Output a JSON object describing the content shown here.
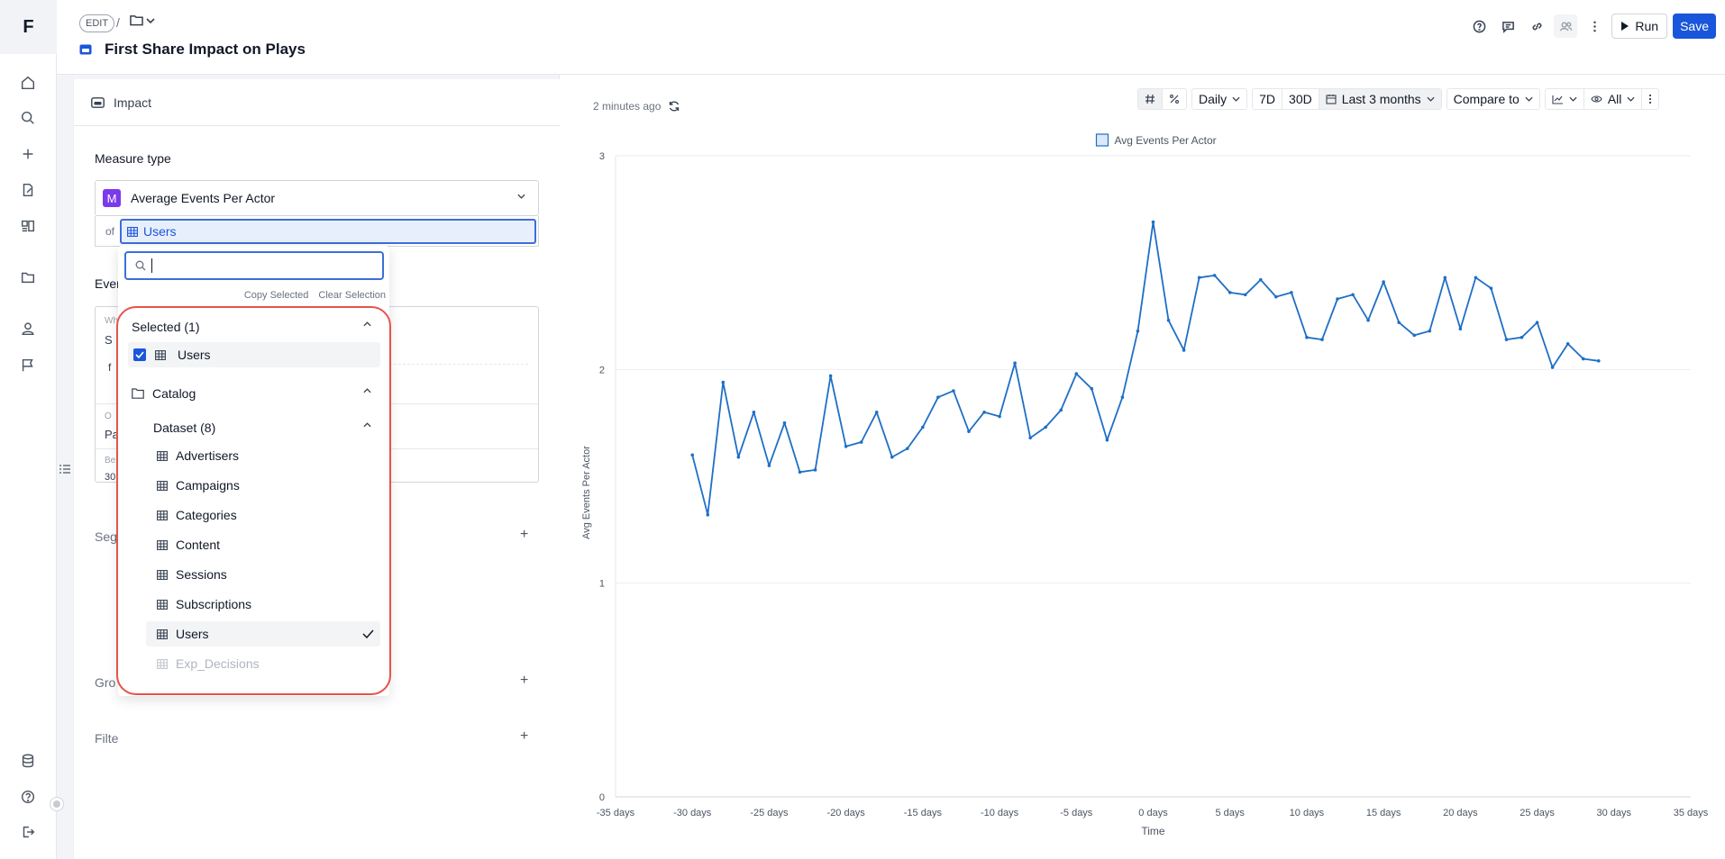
{
  "rail": {
    "logo": "F",
    "icons": [
      "home-icon",
      "search-icon",
      "plus-icon",
      "new-document-icon",
      "reports-icon",
      "folder-icon",
      "user-icon",
      "flag-icon"
    ],
    "bottom_icons": [
      "database-icon",
      "help-icon",
      "logout-icon"
    ]
  },
  "header": {
    "edit_label": "EDIT",
    "separator": "/",
    "title": "First Share Impact on Plays",
    "run_label": "Run",
    "save_label": "Save"
  },
  "panel": {
    "card_title": "Impact",
    "measure_type_label": "Measure type",
    "measure_value": "Average Events Per Actor",
    "measure_badge": "M",
    "of_label": "of",
    "of_value": "Users",
    "occluded": {
      "events": "Even",
      "w": "Wh",
      "s": "S",
      "f": "f",
      "o": "O",
      "p": "Pa",
      "b": "Be",
      "n": "30",
      "segments": "Seg",
      "group": "Gro",
      "filters": "Filte"
    }
  },
  "dropdown": {
    "search_value": "",
    "copy_selected": "Copy Selected",
    "clear_selection": "Clear Selection",
    "selected_header": "Selected (1)",
    "selected_items": [
      "Users"
    ],
    "catalog_label": "Catalog",
    "dataset_label": "Dataset (8)",
    "datasets": [
      {
        "label": "Advertisers",
        "checked": false,
        "disabled": false
      },
      {
        "label": "Campaigns",
        "checked": false,
        "disabled": false
      },
      {
        "label": "Categories",
        "checked": false,
        "disabled": false
      },
      {
        "label": "Content",
        "checked": false,
        "disabled": false
      },
      {
        "label": "Sessions",
        "checked": false,
        "disabled": false
      },
      {
        "label": "Subscriptions",
        "checked": false,
        "disabled": false
      },
      {
        "label": "Users",
        "checked": true,
        "disabled": false
      },
      {
        "label": "Exp_Decisions",
        "checked": false,
        "disabled": true
      }
    ]
  },
  "toolbar": {
    "updated": "2 minutes ago",
    "granularity": "Daily",
    "range_7d": "7D",
    "range_30d": "30D",
    "date_range": "Last 3 months",
    "compare": "Compare to",
    "visibility": "All"
  },
  "chart_data": {
    "type": "line",
    "legend": [
      "Avg Events Per Actor"
    ],
    "legend_placement": "top-center",
    "xlabel": "Time",
    "ylabel": "Avg Events Per Actor",
    "x_unit": "days",
    "xlim": [
      -35,
      35
    ],
    "ylim": [
      0,
      3
    ],
    "x_ticks": [
      -35,
      -30,
      -25,
      -20,
      -15,
      -10,
      -5,
      0,
      5,
      10,
      15,
      20,
      25,
      30,
      35
    ],
    "x_tick_labels": [
      "-35 days",
      "-30 days",
      "-25 days",
      "-20 days",
      "-15 days",
      "-10 days",
      "-5 days",
      "0 days",
      "5 days",
      "10 days",
      "15 days",
      "20 days",
      "25 days",
      "30 days",
      "35 days"
    ],
    "y_ticks": [
      0,
      1,
      2,
      3
    ],
    "y_tick_labels": [
      "0",
      "1",
      "2",
      "3"
    ],
    "grid": true,
    "color": "#1f6fc5",
    "series": [
      {
        "name": "Avg Events Per Actor",
        "x": [
          -30,
          -29,
          -28,
          -27,
          -26,
          -25,
          -24,
          -23,
          -22,
          -21,
          -20,
          -19,
          -18,
          -17,
          -16,
          -15,
          -14,
          -13,
          -12,
          -11,
          -10,
          -9,
          -8,
          -7,
          -6,
          -5,
          -4,
          -3,
          -2,
          -1,
          0,
          1,
          2,
          3,
          4,
          5,
          6,
          7,
          8,
          9,
          10,
          11,
          12,
          13,
          14,
          15,
          16,
          17,
          18,
          19,
          20,
          21,
          22,
          23,
          24,
          25,
          26,
          27,
          28,
          29
        ],
        "y": [
          1.6,
          1.32,
          1.94,
          1.59,
          1.8,
          1.55,
          1.75,
          1.52,
          1.53,
          1.97,
          1.64,
          1.66,
          1.8,
          1.59,
          1.63,
          1.73,
          1.87,
          1.9,
          1.71,
          1.8,
          1.78,
          2.03,
          1.68,
          1.73,
          1.81,
          1.98,
          1.91,
          1.67,
          1.87,
          2.18,
          2.69,
          2.23,
          2.09,
          2.43,
          2.44,
          2.36,
          2.35,
          2.42,
          2.34,
          2.36,
          2.15,
          2.14,
          2.33,
          2.35,
          2.23,
          2.41,
          2.22,
          2.16,
          2.18,
          2.43,
          2.19,
          2.43,
          2.38,
          2.14,
          2.15,
          2.22,
          2.01,
          2.12,
          2.05,
          2.04
        ]
      }
    ]
  }
}
